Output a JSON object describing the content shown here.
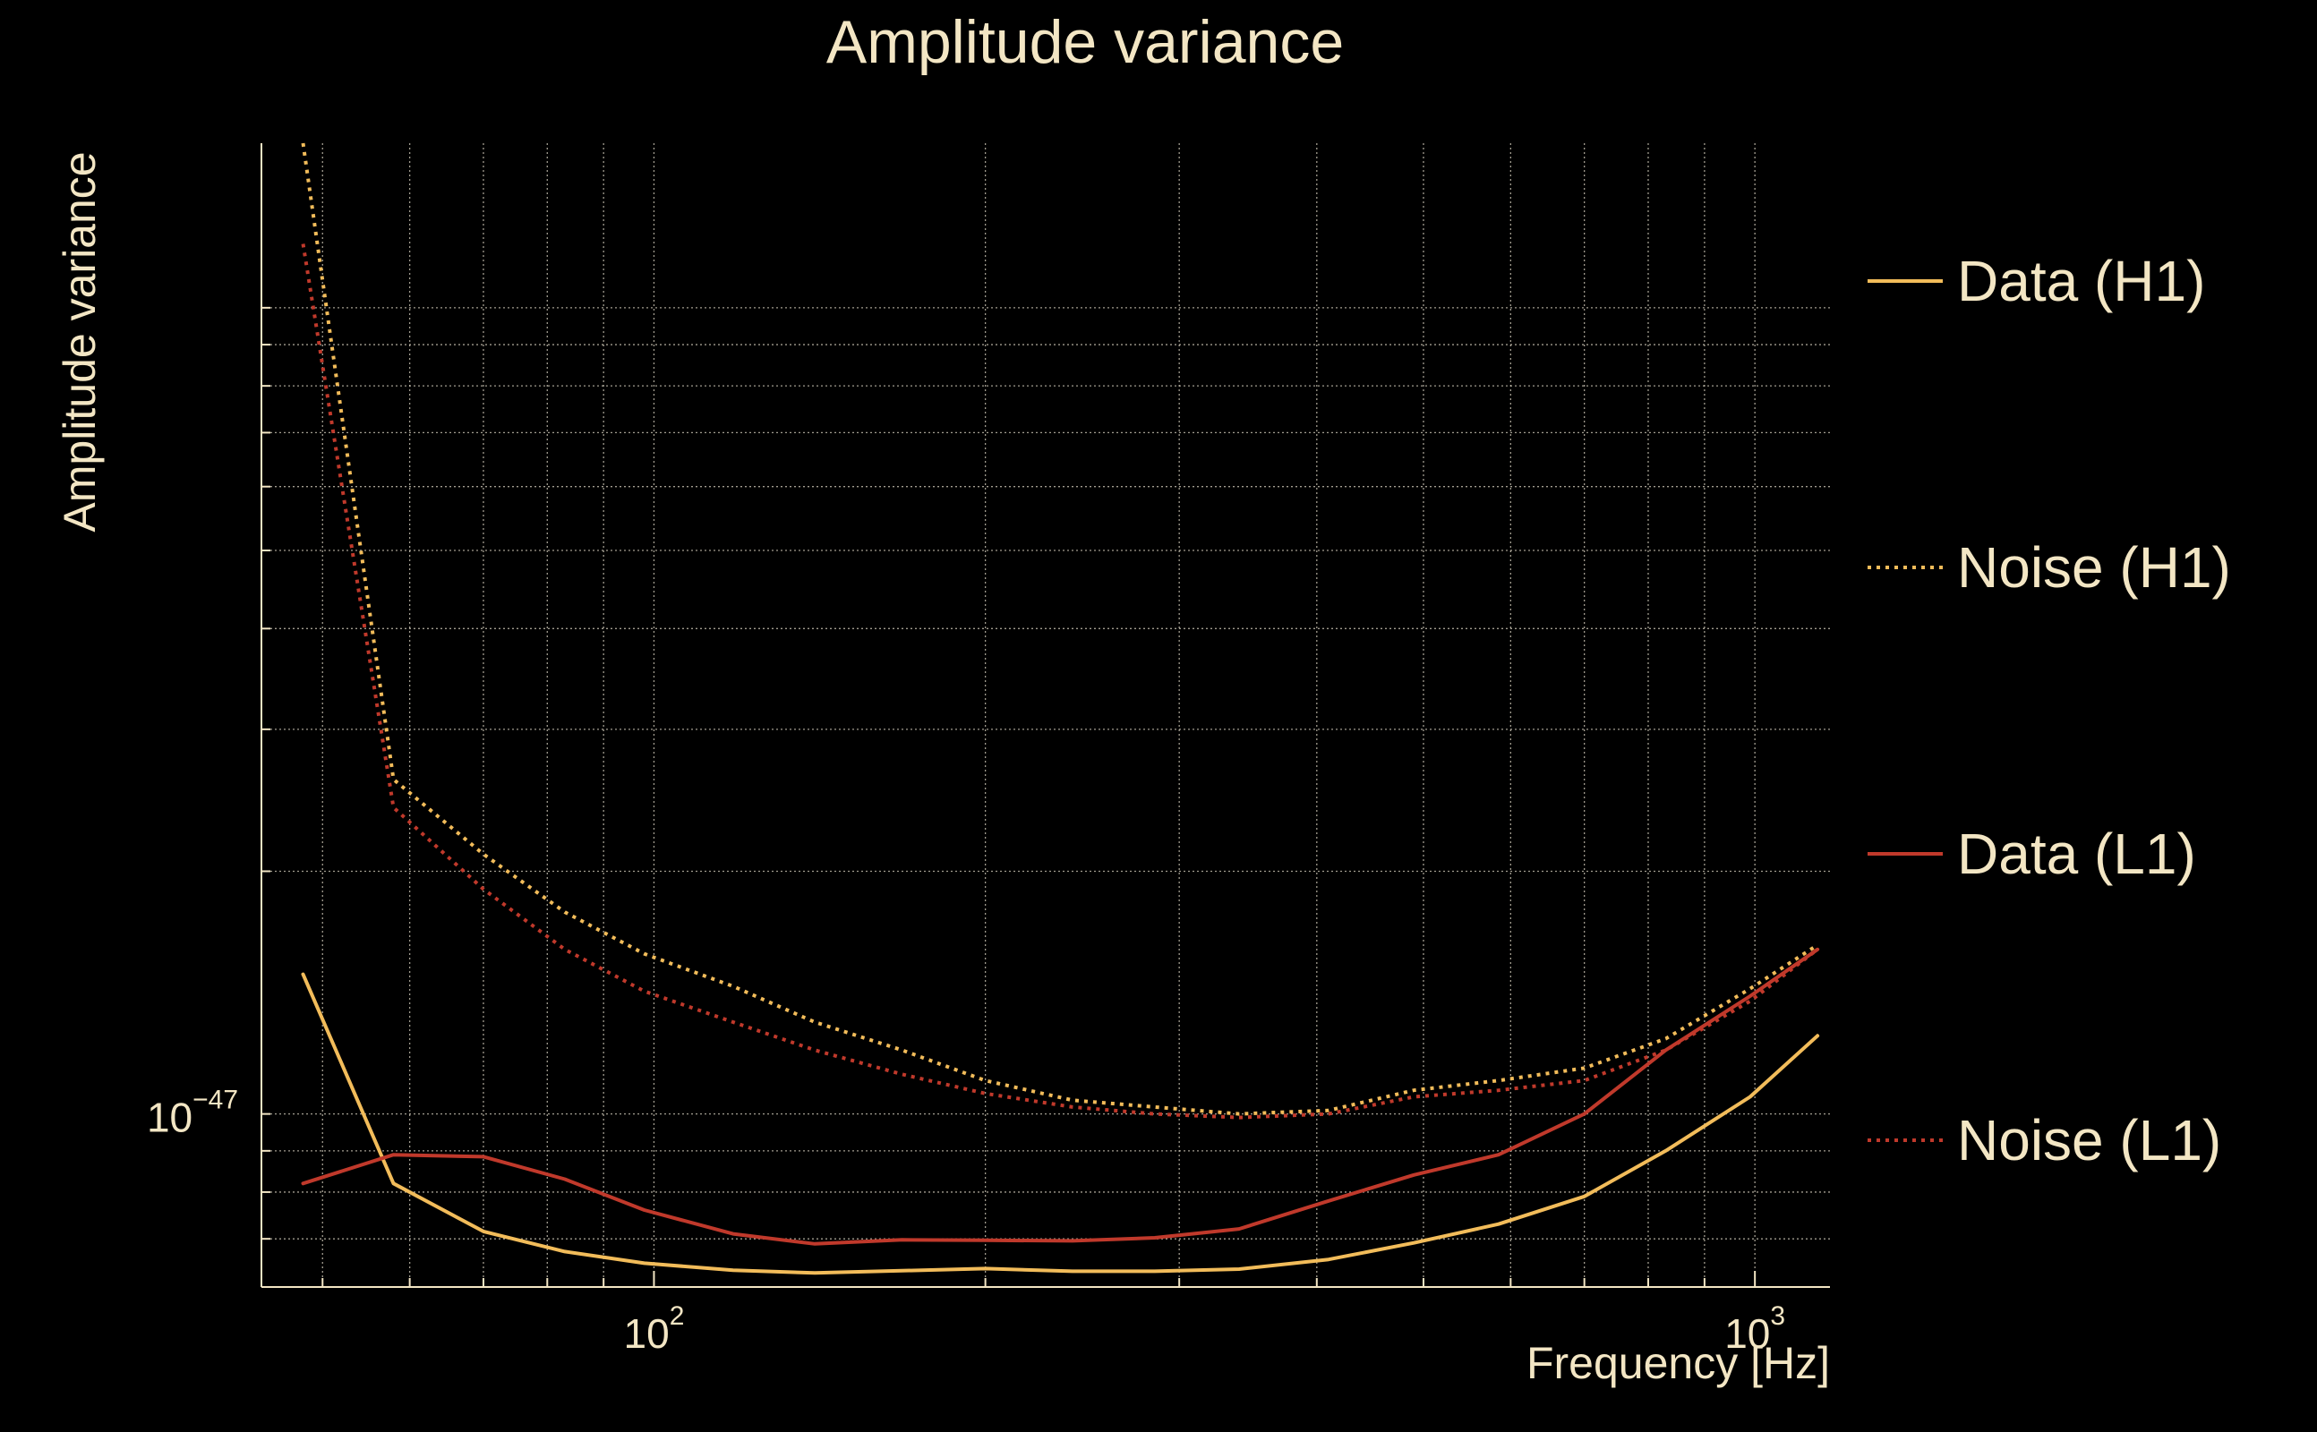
{
  "chart_data": {
    "type": "line",
    "title": "Amplitude variance",
    "xlabel": "Frequency [Hz]",
    "ylabel": "Amplitude variance",
    "xscale": "log",
    "yscale": "log",
    "xlim": [
      44,
      1170
    ],
    "ylim": [
      6.1e-48,
      1.6e-46
    ],
    "grid": true,
    "x_ticks": [
      {
        "value": 100,
        "base": "10",
        "exp": "2"
      },
      {
        "value": 1000,
        "base": "10",
        "exp": "3"
      }
    ],
    "y_ticks": [
      {
        "value": 1e-47,
        "base": "10",
        "exp": "−47"
      }
    ],
    "legend_position": "right",
    "series": [
      {
        "name": "Data (H1)",
        "color": "#f2bc5a",
        "dash": "solid",
        "x": [
          48,
          58,
          70,
          83,
          98,
          118,
          140,
          168,
          200,
          240,
          285,
          340,
          410,
          490,
          585,
          700,
          830,
          990,
          1140
        ],
        "y": [
          1.49e-47,
          8.2e-48,
          7.15e-48,
          6.75e-48,
          6.53e-48,
          6.4e-48,
          6.35e-48,
          6.39e-48,
          6.43e-48,
          6.38e-48,
          6.38e-48,
          6.42e-48,
          6.6e-48,
          6.92e-48,
          7.3e-48,
          7.9e-48,
          9e-48,
          1.05e-47,
          1.25e-47
        ]
      },
      {
        "name": "Noise (H1)",
        "color": "#f2bc5a",
        "dash": "dotted",
        "x": [
          48,
          58,
          70,
          83,
          98,
          118,
          140,
          168,
          200,
          240,
          285,
          340,
          410,
          490,
          585,
          700,
          830,
          990,
          1140
        ],
        "y": [
          1.6e-46,
          2.6e-47,
          2.1e-47,
          1.78e-47,
          1.58e-47,
          1.44e-47,
          1.3e-47,
          1.2e-47,
          1.1e-47,
          1.04e-47,
          1.02e-47,
          1e-47,
          1.01e-47,
          1.07e-47,
          1.1e-47,
          1.14e-47,
          1.24e-47,
          1.43e-47,
          1.62e-47
        ]
      },
      {
        "name": "Data (L1)",
        "color": "#c0392b",
        "dash": "solid",
        "x": [
          48,
          58,
          70,
          83,
          98,
          118,
          140,
          168,
          200,
          240,
          285,
          340,
          410,
          490,
          585,
          700,
          830,
          990,
          1140
        ],
        "y": [
          8.2e-48,
          8.9e-48,
          8.85e-48,
          8.3e-48,
          7.6e-48,
          7.1e-48,
          6.9e-48,
          6.98e-48,
          6.97e-48,
          6.96e-48,
          7.02e-48,
          7.2e-48,
          7.8e-48,
          8.4e-48,
          8.9e-48,
          1e-47,
          1.2e-47,
          1.4e-47,
          1.6e-47
        ]
      },
      {
        "name": "Noise (L1)",
        "color": "#c0392b",
        "dash": "dotted",
        "x": [
          48,
          58,
          70,
          83,
          98,
          118,
          140,
          168,
          200,
          240,
          285,
          340,
          410,
          490,
          585,
          700,
          830,
          990,
          1140
        ],
        "y": [
          1.2e-46,
          2.4e-47,
          1.9e-47,
          1.6e-47,
          1.42e-47,
          1.3e-47,
          1.2e-47,
          1.12e-47,
          1.06e-47,
          1.02e-47,
          1e-47,
          9.9e-48,
          1e-47,
          1.05e-47,
          1.07e-47,
          1.1e-47,
          1.2e-47,
          1.38e-47,
          1.6e-47
        ]
      }
    ]
  }
}
